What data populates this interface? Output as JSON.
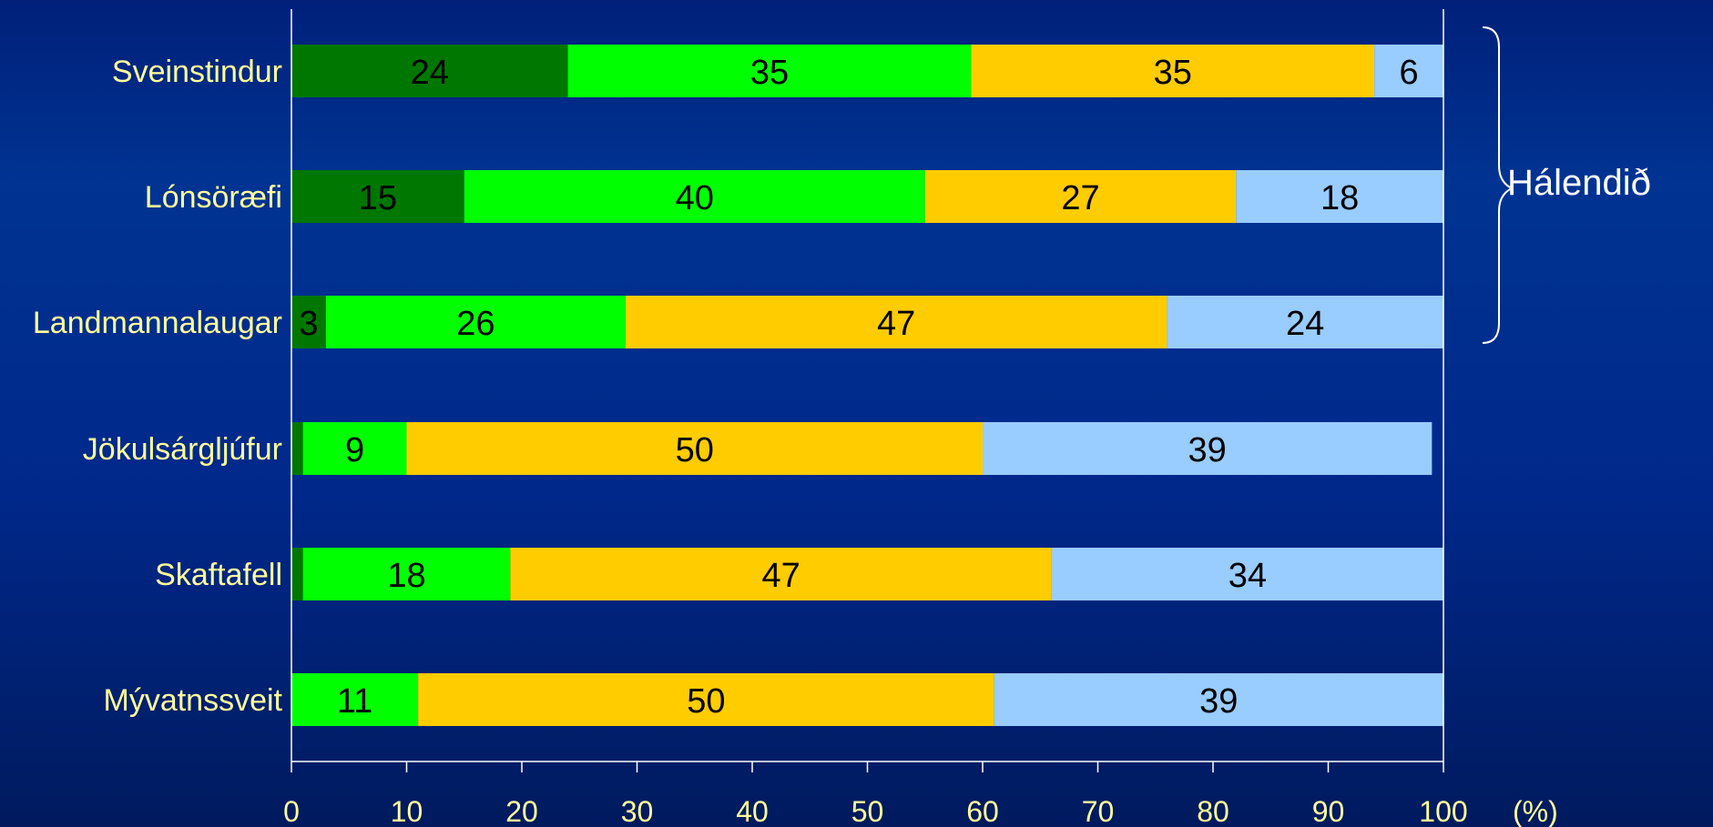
{
  "chart_data": {
    "type": "bar",
    "orientation": "horizontal",
    "stacked": true,
    "categories": [
      "Sveinstindur",
      "Lónsöræfi",
      "Landmannalaugar",
      "Jökulsárgljúfur",
      "Skaftafell",
      "Mývatnssveit"
    ],
    "series": [
      {
        "color": "#007700",
        "values": [
          24,
          15,
          3,
          1,
          1,
          0
        ]
      },
      {
        "color": "#00ff00",
        "values": [
          35,
          40,
          26,
          9,
          18,
          11
        ]
      },
      {
        "color": "#ffcc00",
        "values": [
          35,
          27,
          47,
          50,
          47,
          50
        ]
      },
      {
        "color": "#99ccff",
        "values": [
          6,
          18,
          24,
          39,
          34,
          39
        ]
      }
    ],
    "data_labels": [
      [
        "24",
        "35",
        "35",
        "6"
      ],
      [
        "15",
        "40",
        "27",
        "18"
      ],
      [
        "3",
        "26",
        "47",
        "24"
      ],
      [
        "",
        "9",
        "50",
        "39"
      ],
      [
        "",
        "18",
        "47",
        "34"
      ],
      [
        "",
        "11",
        "50",
        "39"
      ]
    ],
    "x_ticks": [
      "0",
      "10",
      "20",
      "30",
      "40",
      "50",
      "60",
      "70",
      "80",
      "90",
      "100"
    ],
    "x_unit": "(%)",
    "xlim": [
      0,
      100
    ],
    "grid": false,
    "legend": "none",
    "annotation": {
      "text": "Hálendið",
      "groups": [
        "Sveinstindur",
        "Lónsöræfi",
        "Landmannalaugar"
      ]
    }
  }
}
